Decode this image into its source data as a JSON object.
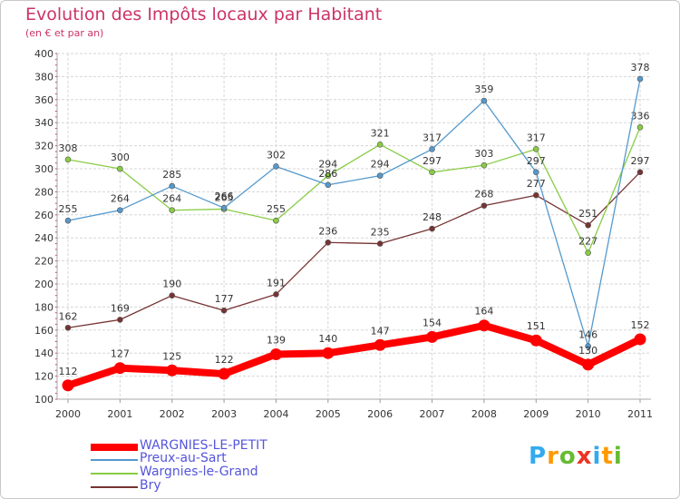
{
  "chart_data": {
    "type": "line",
    "title": "Evolution des Impôts locaux par Habitant",
    "subtitle": "(en € et par an)",
    "categories": [
      "2000",
      "2001",
      "2002",
      "2003",
      "2004",
      "2005",
      "2006",
      "2007",
      "2008",
      "2009",
      "2010",
      "2011"
    ],
    "ylim": [
      100,
      400
    ],
    "yticks": [
      100,
      120,
      140,
      160,
      180,
      200,
      220,
      240,
      260,
      280,
      300,
      320,
      340,
      360,
      380,
      400
    ],
    "grid": true,
    "legend_position": "bottom-left",
    "series": [
      {
        "name": "WARGNIES-LE-PETIT",
        "color": "#ff0000",
        "values": [
          112,
          127,
          125,
          122,
          139,
          140,
          147,
          154,
          164,
          151,
          130,
          152
        ]
      },
      {
        "name": "Preux-au-Sart",
        "color": "#5599cc",
        "values": [
          255,
          264,
          285,
          266,
          302,
          286,
          294,
          317,
          359,
          297,
          146,
          378
        ]
      },
      {
        "name": "Wargnies-le-Grand",
        "color": "#88cc44",
        "values": [
          308,
          300,
          264,
          265,
          255,
          294,
          321,
          297,
          303,
          317,
          227,
          336
        ]
      },
      {
        "name": "Bry",
        "color": "#773333",
        "values": [
          162,
          169,
          190,
          177,
          191,
          236,
          235,
          248,
          268,
          277,
          251,
          297
        ]
      }
    ]
  },
  "logo": {
    "letters": [
      "P",
      "r",
      "o",
      "x",
      "i",
      "t",
      "i"
    ],
    "colors": [
      "#33aaee",
      "#ff9900",
      "#66bb33",
      "#ee3322",
      "#33aaee",
      "#ff9900",
      "#66bb33"
    ]
  }
}
